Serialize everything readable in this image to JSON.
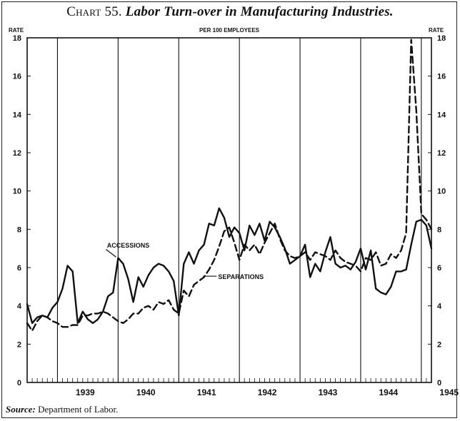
{
  "header": {
    "chart_number": "Chart 55.",
    "chart_name": "Labor Turn-over in Manufacturing Industries."
  },
  "footer": {
    "source_label": "Source:",
    "source_text": "Department of Labor."
  },
  "colors": {
    "ink": "#111111",
    "paper": "#ffffff"
  },
  "chart_data": {
    "type": "line",
    "title": "Labor Turn-over in Manufacturing Industries.",
    "top_label": "PER 100 EMPLOYEES",
    "ylabel_left": "RATE",
    "ylabel_right": "RATE",
    "ylim": [
      0,
      18
    ],
    "yticks": [
      0,
      2,
      4,
      6,
      8,
      10,
      12,
      14,
      16,
      18
    ],
    "x_unit": "month",
    "xlim": [
      0,
      80
    ],
    "year_labels": [
      "1939",
      "1940",
      "1941",
      "1942",
      "1943",
      "1944",
      "1945"
    ],
    "grid": "vertical year lines",
    "series": [
      {
        "name": "ACCESSIONS",
        "style": "solid",
        "x": [
          0,
          1,
          2,
          3,
          4,
          5,
          6,
          7,
          8,
          9,
          10,
          11,
          12,
          13,
          14,
          15,
          16,
          17,
          18,
          19,
          20,
          21,
          22,
          23,
          24,
          25,
          26,
          27,
          28,
          29,
          30,
          31,
          32,
          33,
          34,
          35,
          36,
          37,
          38,
          39,
          40,
          41,
          42,
          43,
          44,
          45,
          46,
          47,
          48,
          49,
          50,
          51,
          52,
          53,
          54,
          55,
          56,
          57,
          58,
          59,
          60,
          61,
          62,
          63,
          64,
          65,
          66,
          67,
          68,
          69,
          70,
          71,
          72,
          73,
          74,
          75,
          76,
          77,
          78,
          79,
          80
        ],
        "values": [
          4.1,
          3.1,
          3.4,
          3.5,
          3.4,
          3.9,
          4.2,
          4.9,
          6.1,
          5.8,
          3.1,
          3.7,
          3.3,
          3.1,
          3.3,
          3.7,
          4.5,
          4.7,
          6.5,
          6.2,
          5.4,
          4.2,
          5.5,
          5.0,
          5.6,
          6.0,
          6.2,
          6.1,
          5.8,
          5.3,
          3.5,
          6.2,
          6.8,
          6.2,
          6.9,
          7.2,
          8.3,
          8.2,
          9.1,
          8.6,
          7.6,
          8.1,
          7.8,
          6.9,
          8.2,
          7.7,
          8.3,
          7.4,
          8.4,
          8.1,
          7.6,
          7.0,
          6.2,
          6.4,
          6.6,
          7.2,
          5.5,
          6.2,
          5.8,
          6.8,
          7.6,
          6.2,
          6.0,
          6.1,
          5.9,
          6.3,
          7.0,
          5.9,
          6.9,
          4.9,
          4.7,
          4.6,
          5.0,
          5.8,
          5.8,
          5.9,
          7.2,
          8.4,
          8.5,
          8.2,
          7.0
        ]
      },
      {
        "name": "SEPARATIONS",
        "style": "dashed",
        "x": [
          0,
          1,
          2,
          3,
          4,
          5,
          6,
          7,
          8,
          9,
          10,
          11,
          12,
          13,
          14,
          15,
          16,
          17,
          18,
          19,
          20,
          21,
          22,
          23,
          24,
          25,
          26,
          27,
          28,
          29,
          30,
          31,
          32,
          33,
          34,
          35,
          36,
          37,
          38,
          39,
          40,
          41,
          42,
          43,
          44,
          45,
          46,
          47,
          48,
          49,
          50,
          51,
          52,
          53,
          54,
          55,
          56,
          57,
          58,
          59,
          60,
          61,
          62,
          63,
          64,
          65,
          66,
          67,
          68,
          69,
          70,
          71,
          72,
          73,
          74,
          75,
          76,
          77,
          78,
          79,
          80
        ],
        "values": [
          3.1,
          2.7,
          3.2,
          3.5,
          3.4,
          3.2,
          3.1,
          2.9,
          2.9,
          3.0,
          3.0,
          3.5,
          3.5,
          3.6,
          3.6,
          3.7,
          3.6,
          3.4,
          3.2,
          3.1,
          3.3,
          3.6,
          3.6,
          3.9,
          4.0,
          3.8,
          4.2,
          4.1,
          4.3,
          3.8,
          3.6,
          4.8,
          4.5,
          5.1,
          5.3,
          5.5,
          5.9,
          6.4,
          7.1,
          7.9,
          8.1,
          7.3,
          6.4,
          7.2,
          6.9,
          7.2,
          6.7,
          7.3,
          7.8,
          8.3,
          7.5,
          6.9,
          6.6,
          6.5,
          6.6,
          6.8,
          6.4,
          6.8,
          6.7,
          6.6,
          6.4,
          6.9,
          6.5,
          6.3,
          6.2,
          6.1,
          5.8,
          6.5,
          6.4,
          6.8,
          6.1,
          6.2,
          6.7,
          6.5,
          6.9,
          7.8,
          17.9,
          14.2,
          8.8,
          8.5,
          8.0
        ]
      }
    ],
    "annotations": [
      {
        "text": "ACCESSIONS",
        "points_to": "accessions line, early 1940"
      },
      {
        "text": "SEPARATIONS",
        "points_to": "separations line, early 1942"
      }
    ]
  }
}
